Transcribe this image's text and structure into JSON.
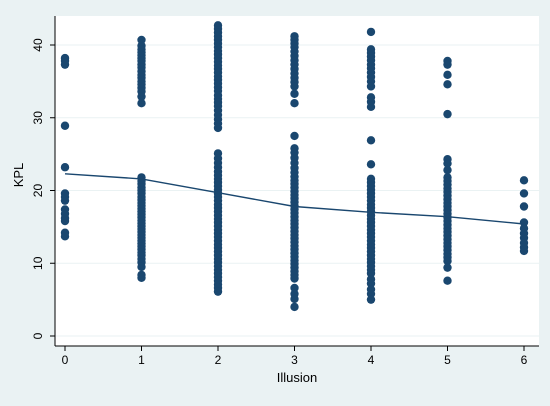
{
  "colors": {
    "outer_background": "#EAF2F3",
    "plot_background": "#FFFFFF",
    "marker": "#1A476F",
    "line": "#1A476F",
    "grid": "#EAF2F3",
    "axis": "#000000",
    "text": "#000000"
  },
  "chart_data": {
    "type": "scatter",
    "xlabel": "Illusion",
    "ylabel": "KPL",
    "xlim": [
      0,
      6
    ],
    "ylim": [
      0,
      45
    ],
    "xticks": [
      0,
      1,
      2,
      3,
      4,
      5,
      6
    ],
    "yticks": [
      0,
      10,
      20,
      30,
      40
    ],
    "grid": "horizontal",
    "series": [
      {
        "kind": "points",
        "groups": [
          {
            "x": 0,
            "y": [
              38.2,
              37.8,
              37.3,
              28.9,
              23.2,
              19.6,
              19.1,
              18.6,
              17.4,
              16.8,
              16.2,
              15.8,
              14.2,
              13.7
            ]
          },
          {
            "x": 1,
            "y": [
              40.7,
              39.9,
              39.4,
              39.0,
              38.6,
              38.2,
              37.8,
              37.3,
              36.9,
              36.4,
              35.9,
              35.5,
              35.0,
              34.6,
              34.1,
              33.6,
              32.9,
              32.0,
              21.8,
              21.3,
              20.9,
              20.4,
              20.0,
              19.6,
              19.1,
              18.7,
              18.3,
              17.9,
              17.5,
              17.1,
              16.7,
              16.3,
              15.9,
              15.5,
              15.1,
              14.7,
              14.3,
              13.9,
              13.5,
              13.1,
              12.7,
              12.3,
              11.9,
              11.5,
              11.1,
              10.6,
              10.1,
              9.5,
              8.4,
              8.0
            ]
          },
          {
            "x": 2,
            "y": [
              42.7,
              42.2,
              41.7,
              41.2,
              40.7,
              40.2,
              39.7,
              39.2,
              38.7,
              38.2,
              37.7,
              37.2,
              36.7,
              36.2,
              35.7,
              35.2,
              34.7,
              34.2,
              33.7,
              33.1,
              32.6,
              32.1,
              31.6,
              31.0,
              30.4,
              29.8,
              29.2,
              28.6,
              25.1,
              24.4,
              23.8,
              23.2,
              22.6,
              22.1,
              21.6,
              21.1,
              20.6,
              20.1,
              19.6,
              19.1,
              18.6,
              18.1,
              17.6,
              17.1,
              16.6,
              16.1,
              15.6,
              15.1,
              14.6,
              14.1,
              13.6,
              13.1,
              12.6,
              12.1,
              11.6,
              11.1,
              10.6,
              10.1,
              9.6,
              9.1,
              8.6,
              8.1,
              7.6,
              7.1,
              6.6,
              6.1
            ]
          },
          {
            "x": 3,
            "y": [
              41.2,
              40.7,
              40.2,
              39.7,
              39.1,
              38.5,
              37.9,
              37.3,
              36.7,
              36.1,
              35.5,
              34.9,
              34.3,
              33.3,
              32.0,
              27.5,
              25.8,
              25.2,
              24.5,
              23.8,
              23.1,
              22.5,
              21.9,
              21.4,
              20.9,
              20.4,
              19.9,
              19.4,
              18.9,
              18.4,
              17.9,
              17.4,
              16.9,
              16.4,
              15.9,
              15.4,
              14.9,
              14.4,
              13.9,
              13.4,
              12.9,
              12.4,
              11.9,
              11.4,
              10.9,
              10.4,
              9.9,
              9.4,
              8.9,
              8.4,
              7.9,
              6.6,
              5.8,
              5.1,
              4.0
            ]
          },
          {
            "x": 4,
            "y": [
              41.8,
              39.4,
              38.9,
              38.4,
              37.9,
              37.3,
              36.8,
              36.2,
              35.6,
              35.0,
              34.3,
              32.8,
              32.2,
              31.5,
              26.9,
              23.6,
              21.6,
              21.1,
              20.6,
              20.1,
              19.6,
              19.1,
              18.6,
              18.1,
              17.6,
              17.1,
              16.6,
              16.1,
              15.6,
              15.1,
              14.6,
              14.1,
              13.6,
              13.1,
              12.6,
              12.1,
              11.6,
              11.1,
              10.6,
              10.1,
              9.6,
              9.1,
              8.6,
              7.8,
              7.2,
              6.4,
              5.8,
              5.0
            ]
          },
          {
            "x": 5,
            "y": [
              37.8,
              37.3,
              35.9,
              34.6,
              30.5,
              24.3,
              23.7,
              22.8,
              21.8,
              21.3,
              20.8,
              20.3,
              19.8,
              19.3,
              18.8,
              18.3,
              17.8,
              17.3,
              16.8,
              16.3,
              15.8,
              15.3,
              14.8,
              14.3,
              13.8,
              13.3,
              12.8,
              12.3,
              11.8,
              11.3,
              10.8,
              10.3,
              9.4,
              7.6
            ]
          },
          {
            "x": 6,
            "y": [
              21.4,
              19.6,
              17.8,
              15.6,
              14.8,
              14.1,
              13.5,
              12.8,
              12.2,
              11.7
            ]
          }
        ]
      },
      {
        "kind": "line",
        "points": [
          [
            0,
            22.3
          ],
          [
            1,
            21.6
          ],
          [
            2,
            19.7
          ],
          [
            3,
            17.8
          ],
          [
            4,
            17.0
          ],
          [
            5,
            16.4
          ],
          [
            6,
            15.4
          ]
        ]
      }
    ]
  }
}
